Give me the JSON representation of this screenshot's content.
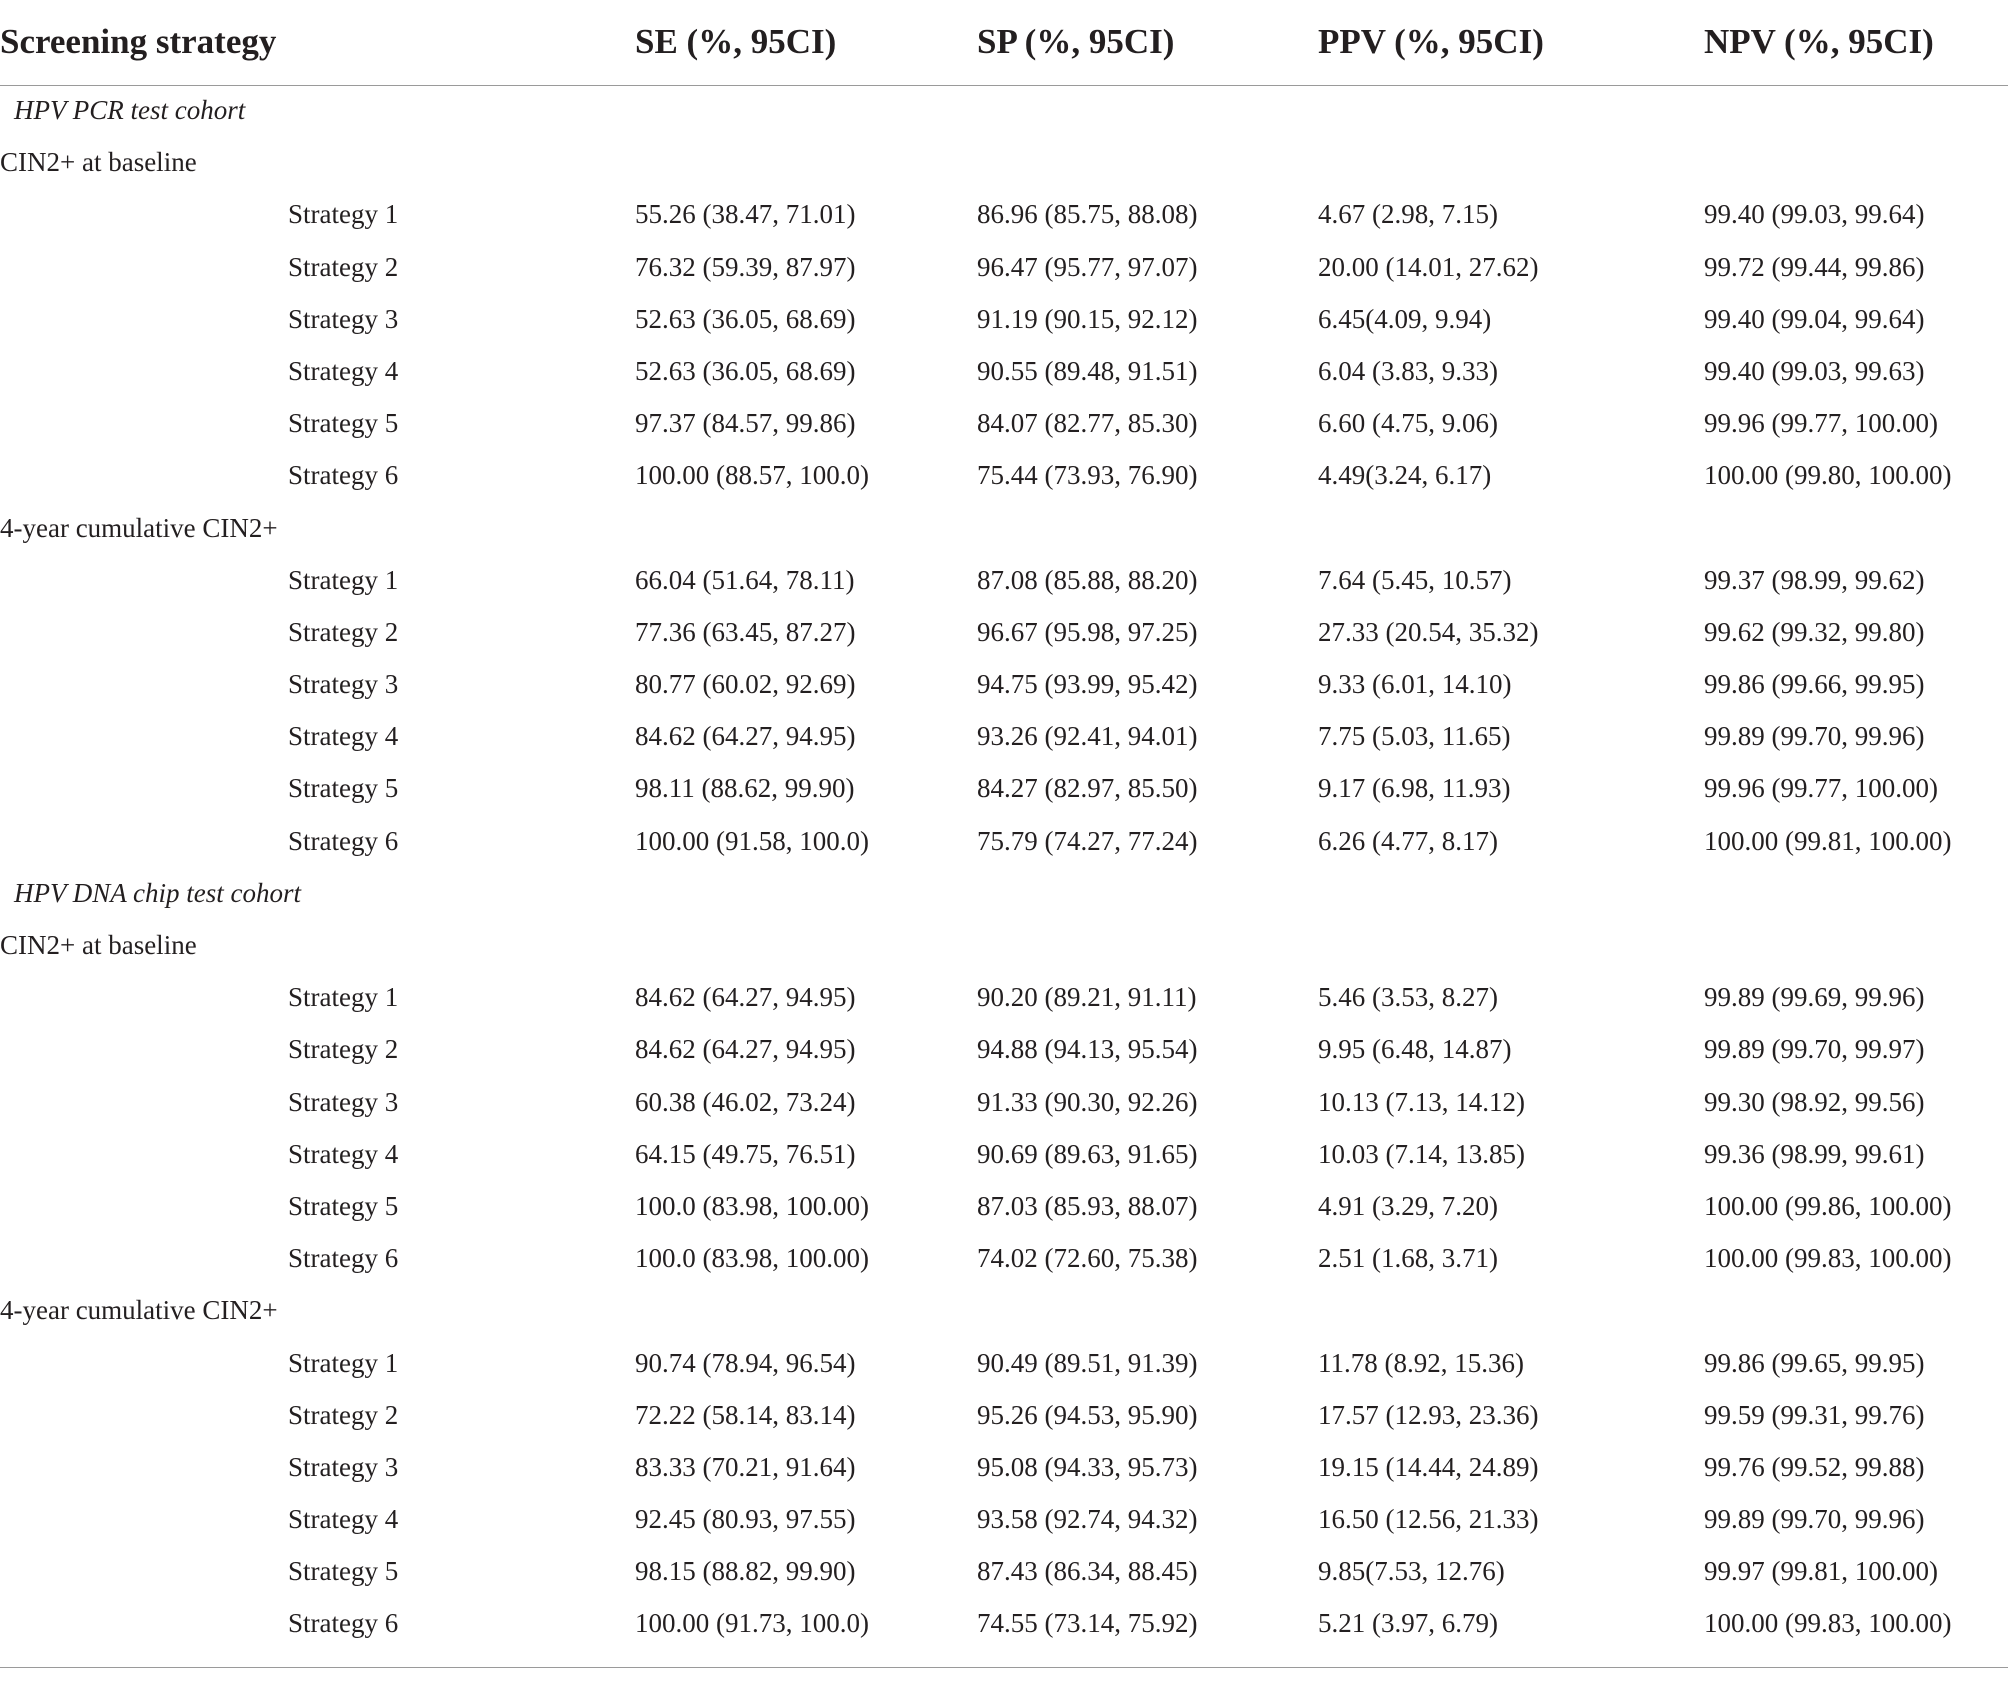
{
  "header": {
    "strategy": "Screening strategy",
    "se": "SE (%, 95CI)",
    "sp": "SP (%, 95CI)",
    "ppv": "PPV (%, 95CI)",
    "npv": "NPV (%, 95CI)"
  },
  "rows": [
    {
      "kind": "cohort",
      "label": "HPV PCR test cohort"
    },
    {
      "kind": "group",
      "label": "CIN2+ at baseline"
    },
    {
      "kind": "data",
      "strategy": "Strategy 1",
      "se": "55.26 (38.47, 71.01)",
      "sp": "86.96 (85.75, 88.08)",
      "ppv": "4.67 (2.98, 7.15)",
      "npv": "99.40 (99.03, 99.64)"
    },
    {
      "kind": "data",
      "strategy": "Strategy 2",
      "se": "76.32 (59.39, 87.97)",
      "sp": "96.47 (95.77, 97.07)",
      "ppv": "20.00 (14.01, 27.62)",
      "npv": "99.72 (99.44, 99.86)"
    },
    {
      "kind": "data",
      "strategy": "Strategy 3",
      "se": "52.63 (36.05, 68.69)",
      "sp": "91.19 (90.15, 92.12)",
      "ppv": "6.45(4.09, 9.94)",
      "npv": "99.40 (99.04, 99.64)"
    },
    {
      "kind": "data",
      "strategy": "Strategy 4",
      "se": "52.63 (36.05, 68.69)",
      "sp": "90.55 (89.48, 91.51)",
      "ppv": "6.04 (3.83, 9.33)",
      "npv": "99.40 (99.03, 99.63)"
    },
    {
      "kind": "data",
      "strategy": "Strategy 5",
      "se": "97.37 (84.57, 99.86)",
      "sp": "84.07 (82.77, 85.30)",
      "ppv": "6.60 (4.75, 9.06)",
      "npv": "99.96 (99.77, 100.00)"
    },
    {
      "kind": "data",
      "strategy": "Strategy 6",
      "se": "100.00 (88.57, 100.0)",
      "sp": "75.44 (73.93, 76.90)",
      "ppv": "4.49(3.24, 6.17)",
      "npv": "100.00 (99.80, 100.00)"
    },
    {
      "kind": "group",
      "label": "4-year cumulative CIN2+"
    },
    {
      "kind": "data",
      "strategy": "Strategy 1",
      "se": "66.04 (51.64, 78.11)",
      "sp": "87.08 (85.88, 88.20)",
      "ppv": "7.64 (5.45, 10.57)",
      "npv": "99.37 (98.99, 99.62)"
    },
    {
      "kind": "data",
      "strategy": "Strategy 2",
      "se": "77.36 (63.45, 87.27)",
      "sp": "96.67 (95.98, 97.25)",
      "ppv": "27.33 (20.54, 35.32)",
      "npv": "99.62 (99.32, 99.80)"
    },
    {
      "kind": "data",
      "strategy": "Strategy 3",
      "se": "80.77 (60.02, 92.69)",
      "sp": "94.75 (93.99, 95.42)",
      "ppv": "9.33 (6.01, 14.10)",
      "npv": "99.86 (99.66, 99.95)"
    },
    {
      "kind": "data",
      "strategy": "Strategy 4",
      "se": "84.62 (64.27, 94.95)",
      "sp": "93.26 (92.41, 94.01)",
      "ppv": "7.75 (5.03, 11.65)",
      "npv": "99.89 (99.70, 99.96)"
    },
    {
      "kind": "data",
      "strategy": "Strategy 5",
      "se": "98.11 (88.62, 99.90)",
      "sp": "84.27 (82.97, 85.50)",
      "ppv": "9.17 (6.98, 11.93)",
      "npv": "99.96 (99.77, 100.00)"
    },
    {
      "kind": "data",
      "strategy": "Strategy 6",
      "se": "100.00 (91.58, 100.0)",
      "sp": "75.79 (74.27, 77.24)",
      "ppv": "6.26 (4.77, 8.17)",
      "npv": "100.00 (99.81, 100.00)"
    },
    {
      "kind": "cohort",
      "label": "HPV DNA chip test cohort"
    },
    {
      "kind": "group",
      "label": "CIN2+ at baseline"
    },
    {
      "kind": "data",
      "strategy": "Strategy 1",
      "se": "84.62 (64.27, 94.95)",
      "sp": "90.20 (89.21, 91.11)",
      "ppv": "5.46 (3.53, 8.27)",
      "npv": "99.89 (99.69, 99.96)"
    },
    {
      "kind": "data",
      "strategy": "Strategy 2",
      "se": "84.62 (64.27, 94.95)",
      "sp": "94.88 (94.13, 95.54)",
      "ppv": "9.95 (6.48, 14.87)",
      "npv": "99.89 (99.70, 99.97)"
    },
    {
      "kind": "data",
      "strategy": "Strategy 3",
      "se": "60.38 (46.02, 73.24)",
      "sp": "91.33 (90.30, 92.26)",
      "ppv": "10.13 (7.13, 14.12)",
      "npv": "99.30 (98.92, 99.56)"
    },
    {
      "kind": "data",
      "strategy": "Strategy 4",
      "se": "64.15 (49.75, 76.51)",
      "sp": "90.69 (89.63, 91.65)",
      "ppv": "10.03 (7.14, 13.85)",
      "npv": "99.36 (98.99, 99.61)"
    },
    {
      "kind": "data",
      "strategy": "Strategy 5",
      "se": "100.0 (83.98, 100.00)",
      "sp": "87.03 (85.93, 88.07)",
      "ppv": "4.91 (3.29, 7.20)",
      "npv": "100.00 (99.86, 100.00)"
    },
    {
      "kind": "data",
      "strategy": "Strategy 6",
      "se": "100.0 (83.98, 100.00)",
      "sp": "74.02 (72.60, 75.38)",
      "ppv": "2.51 (1.68, 3.71)",
      "npv": "100.00 (99.83, 100.00)"
    },
    {
      "kind": "group",
      "label": "4-year cumulative CIN2+"
    },
    {
      "kind": "data",
      "strategy": "Strategy 1",
      "se": "90.74 (78.94, 96.54)",
      "sp": "90.49 (89.51, 91.39)",
      "ppv": "11.78 (8.92, 15.36)",
      "npv": "99.86 (99.65, 99.95)"
    },
    {
      "kind": "data",
      "strategy": "Strategy 2",
      "se": "72.22 (58.14, 83.14)",
      "sp": "95.26 (94.53, 95.90)",
      "ppv": "17.57 (12.93, 23.36)",
      "npv": "99.59 (99.31, 99.76)"
    },
    {
      "kind": "data",
      "strategy": "Strategy 3",
      "se": "83.33 (70.21, 91.64)",
      "sp": "95.08 (94.33, 95.73)",
      "ppv": "19.15 (14.44, 24.89)",
      "npv": "99.76 (99.52, 99.88)"
    },
    {
      "kind": "data",
      "strategy": "Strategy 4",
      "se": "92.45 (80.93, 97.55)",
      "sp": "93.58 (92.74, 94.32)",
      "ppv": "16.50 (12.56, 21.33)",
      "npv": "99.89 (99.70, 99.96)"
    },
    {
      "kind": "data",
      "strategy": "Strategy 5",
      "se": "98.15 (88.82, 99.90)",
      "sp": "87.43 (86.34, 88.45)",
      "ppv": "9.85(7.53, 12.76)",
      "npv": "99.97 (99.81, 100.00)"
    },
    {
      "kind": "data",
      "strategy": "Strategy 6",
      "se": "100.00 (91.73, 100.0)",
      "sp": "74.55 (73.14, 75.92)",
      "ppv": "5.21 (3.97, 6.79)",
      "npv": "100.00 (99.83, 100.00)"
    }
  ]
}
